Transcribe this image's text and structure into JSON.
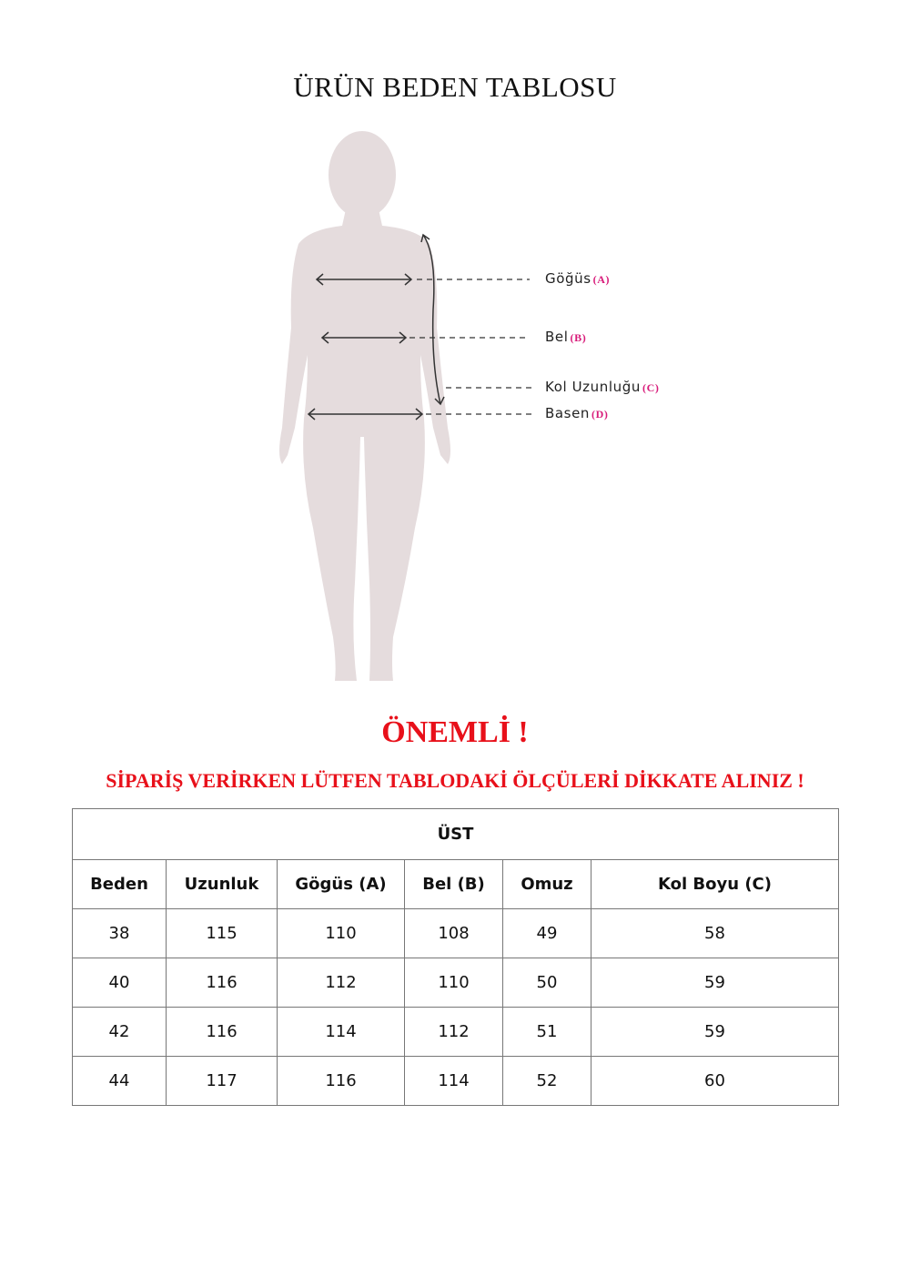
{
  "title": "ÜRÜN BEDEN TABLOSU",
  "figure": {
    "silhouette_color": "#e5dcdd",
    "labels": [
      {
        "text": "Göğüs",
        "code": "(A)"
      },
      {
        "text": "Bel",
        "code": "(B)"
      },
      {
        "text": "Kol Uzunluğu",
        "code": "(C)"
      },
      {
        "text": "Basen",
        "code": "(D)"
      }
    ]
  },
  "notice": {
    "heading": "ÖNEMLİ !",
    "message": "SİPARİŞ VERİRKEN LÜTFEN TABLODAKİ ÖLÇÜLERİ DİKKATE ALINIZ !",
    "color": "#e8101a"
  },
  "table": {
    "section": "ÜST",
    "headers": [
      "Beden",
      "Uzunluk",
      "Gögüs (A)",
      "Bel (B)",
      "Omuz",
      "Kol Boyu (C)"
    ],
    "rows": [
      [
        "38",
        "115",
        "110",
        "108",
        "49",
        "58"
      ],
      [
        "40",
        "116",
        "112",
        "110",
        "50",
        "59"
      ],
      [
        "42",
        "116",
        "114",
        "112",
        "51",
        "59"
      ],
      [
        "44",
        "117",
        "116",
        "114",
        "52",
        "60"
      ]
    ]
  }
}
